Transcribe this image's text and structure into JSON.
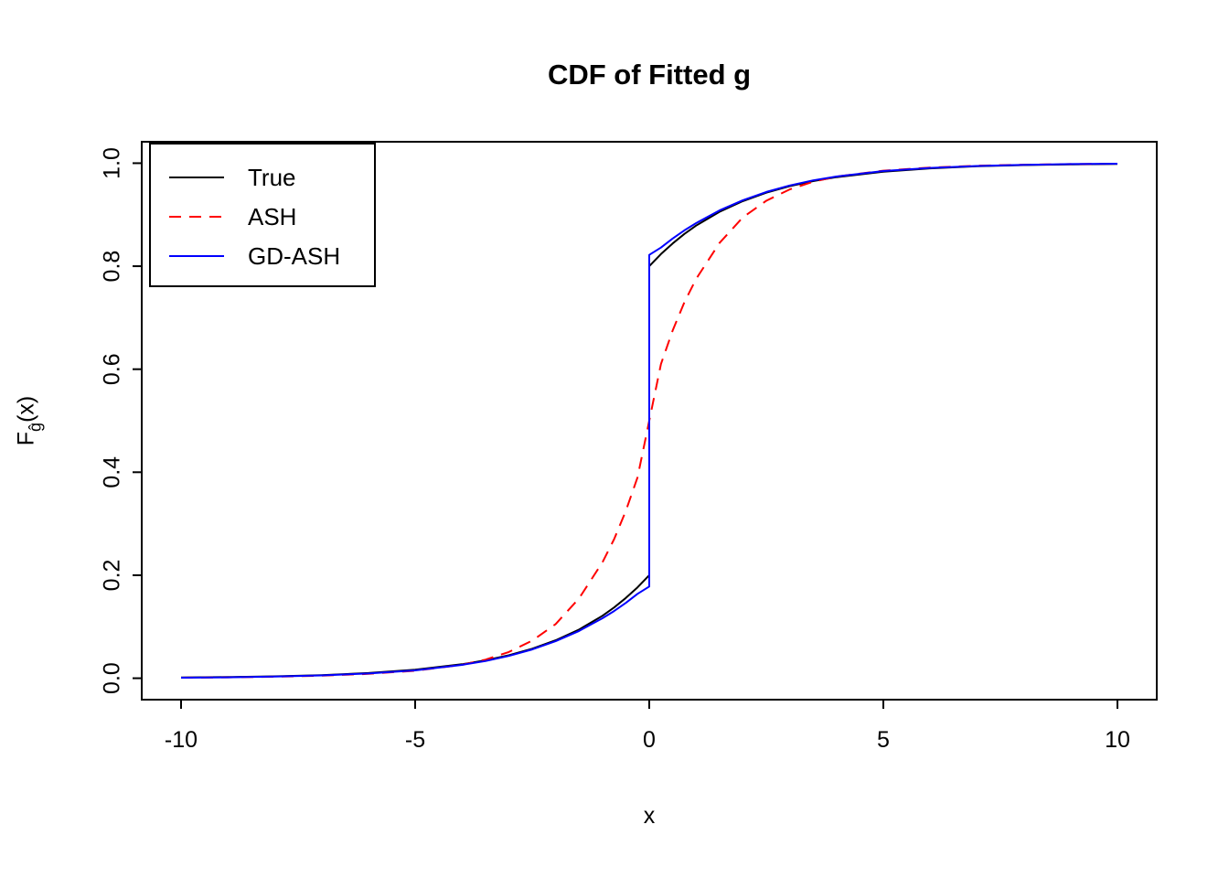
{
  "page": {
    "background": "#FFFFFF"
  },
  "chart_data": {
    "type": "line",
    "title": "CDF of Fitted g",
    "xlabel": "x",
    "ylabel": "Fĝ(x)",
    "ylabel_parts": {
      "pre": "F",
      "sub": "ĝ",
      "post": "(x)"
    },
    "xlim": [
      -10.84,
      10.84
    ],
    "ylim": [
      -0.0416,
      1.0416
    ],
    "grid": false,
    "frame_color": "#000000",
    "xticks": {
      "values": [
        -10,
        -5,
        0,
        5,
        10
      ],
      "labels": [
        "-10",
        "-5",
        "0",
        "5",
        "10"
      ]
    },
    "yticks": {
      "values": [
        0,
        0.2,
        0.4,
        0.6,
        0.8,
        1
      ],
      "labels": [
        "0.0",
        "0.2",
        "0.4",
        "0.6",
        "0.8",
        "1.0"
      ]
    },
    "legend": {
      "position": "top-left",
      "entries": [
        {
          "label": "True",
          "color": "#000000",
          "dash": "solid"
        },
        {
          "label": "ASH",
          "color": "#FF0000",
          "dash": "dashed"
        },
        {
          "label": "GD-ASH",
          "color": "#0000FF",
          "dash": "solid"
        }
      ]
    },
    "series": [
      {
        "name": "True",
        "color": "#000000",
        "dash": "solid",
        "points": [
          [
            -10,
            0.0013
          ],
          [
            -9,
            0.0022
          ],
          [
            -8,
            0.0037
          ],
          [
            -7,
            0.006
          ],
          [
            -6,
            0.01
          ],
          [
            -5,
            0.0164
          ],
          [
            -4,
            0.0271
          ],
          [
            -3.5,
            0.0347
          ],
          [
            -3,
            0.0446
          ],
          [
            -2.5,
            0.0573
          ],
          [
            -2,
            0.0736
          ],
          [
            -1.5,
            0.0945
          ],
          [
            -1,
            0.1213
          ],
          [
            -0.75,
            0.1374
          ],
          [
            -0.5,
            0.1558
          ],
          [
            -0.25,
            0.1765
          ],
          [
            0,
            0.2
          ],
          [
            0,
            0.8
          ],
          [
            0.25,
            0.8235
          ],
          [
            0.5,
            0.8442
          ],
          [
            0.75,
            0.8626
          ],
          [
            1,
            0.8787
          ],
          [
            1.5,
            0.9055
          ],
          [
            2,
            0.9264
          ],
          [
            2.5,
            0.9427
          ],
          [
            3,
            0.9554
          ],
          [
            3.5,
            0.9653
          ],
          [
            4,
            0.9729
          ],
          [
            5,
            0.9836
          ],
          [
            6,
            0.99
          ],
          [
            7,
            0.994
          ],
          [
            8,
            0.9963
          ],
          [
            9,
            0.9978
          ],
          [
            10,
            0.9987
          ]
        ]
      },
      {
        "name": "ASH",
        "color": "#FF0000",
        "dash": "dashed",
        "points": [
          [
            -10,
            0.001
          ],
          [
            -9,
            0.0017
          ],
          [
            -8,
            0.003
          ],
          [
            -7,
            0.005
          ],
          [
            -6,
            0.0085
          ],
          [
            -5,
            0.0145
          ],
          [
            -4,
            0.026
          ],
          [
            -3.5,
            0.036
          ],
          [
            -3,
            0.051
          ],
          [
            -2.5,
            0.073
          ],
          [
            -2,
            0.105
          ],
          [
            -1.5,
            0.155
          ],
          [
            -1,
            0.225
          ],
          [
            -0.75,
            0.27
          ],
          [
            -0.5,
            0.325
          ],
          [
            -0.25,
            0.39
          ],
          [
            0,
            0.5
          ],
          [
            0.25,
            0.61
          ],
          [
            0.5,
            0.675
          ],
          [
            0.75,
            0.73
          ],
          [
            1,
            0.775
          ],
          [
            1.5,
            0.845
          ],
          [
            2,
            0.895
          ],
          [
            2.5,
            0.927
          ],
          [
            3,
            0.949
          ],
          [
            3.5,
            0.964
          ],
          [
            4,
            0.974
          ],
          [
            5,
            0.9855
          ],
          [
            6,
            0.9915
          ],
          [
            7,
            0.995
          ],
          [
            8,
            0.997
          ],
          [
            9,
            0.9983
          ],
          [
            10,
            0.999
          ]
        ]
      },
      {
        "name": "GD-ASH",
        "color": "#0000FF",
        "dash": "solid",
        "points": [
          [
            -10,
            0.001
          ],
          [
            -9,
            0.0018
          ],
          [
            -8,
            0.0032
          ],
          [
            -7,
            0.0055
          ],
          [
            -6,
            0.0092
          ],
          [
            -5,
            0.0152
          ],
          [
            -4,
            0.0258
          ],
          [
            -3.5,
            0.0333
          ],
          [
            -3,
            0.0432
          ],
          [
            -2.5,
            0.0558
          ],
          [
            -2,
            0.0718
          ],
          [
            -1.5,
            0.0918
          ],
          [
            -1,
            0.1165
          ],
          [
            -0.75,
            0.1305
          ],
          [
            -0.5,
            0.1463
          ],
          [
            -0.25,
            0.1638
          ],
          [
            0,
            0.178
          ],
          [
            0,
            0.822
          ],
          [
            0.25,
            0.8362
          ],
          [
            0.5,
            0.8537
          ],
          [
            0.75,
            0.8695
          ],
          [
            1,
            0.8835
          ],
          [
            1.5,
            0.9082
          ],
          [
            2,
            0.9282
          ],
          [
            2.5,
            0.9442
          ],
          [
            3,
            0.9568
          ],
          [
            3.5,
            0.9667
          ],
          [
            4,
            0.9742
          ],
          [
            5,
            0.9848
          ],
          [
            6,
            0.9908
          ],
          [
            7,
            0.9945
          ],
          [
            8,
            0.9968
          ],
          [
            9,
            0.9982
          ],
          [
            10,
            0.999
          ]
        ]
      }
    ]
  }
}
